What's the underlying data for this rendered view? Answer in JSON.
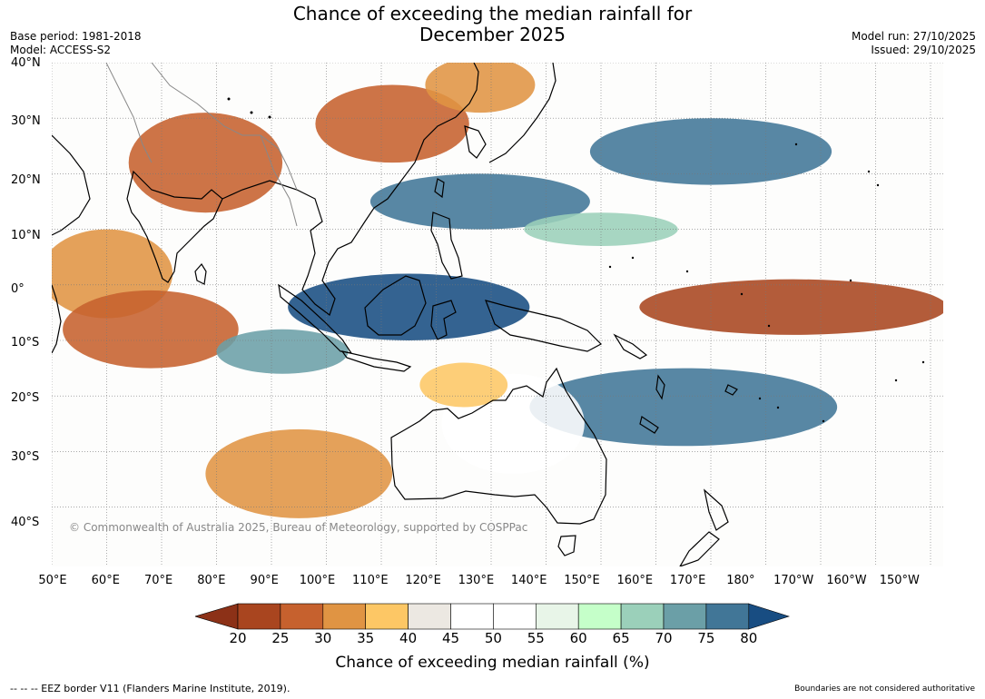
{
  "title": {
    "line1": "Chance of exceeding the median rainfall for",
    "line2": "December 2025"
  },
  "meta": {
    "base_period": "Base period: 1981-2018",
    "model": "Model: ACCESS-S2",
    "model_run": "Model run: 27/10/2025",
    "issued": "Issued: 29/10/2025"
  },
  "map": {
    "copyright": "© Commonwealth of Australia 2025, Bureau of Meteorology, supported by COSPPac",
    "lat_labels": [
      "40°N",
      "30°N",
      "20°N",
      "10°N",
      "0°",
      "10°S",
      "20°S",
      "30°S",
      "40°S"
    ],
    "lon_labels": [
      "50°E",
      "60°E",
      "70°E",
      "80°E",
      "90°E",
      "100°E",
      "110°E",
      "120°E",
      "130°E",
      "140°E",
      "150°E",
      "160°E",
      "170°E",
      "180°",
      "170°W",
      "160°W",
      "150°W"
    ],
    "regions": [
      {
        "name": "india-dry",
        "lon": 78,
        "lat": 22,
        "rlon": 14,
        "rlat": 9,
        "value": 25
      },
      {
        "name": "china-dry",
        "lon": 112,
        "lat": 29,
        "rlon": 14,
        "rlat": 7,
        "value": 25
      },
      {
        "name": "japan-sea-dry",
        "lon": 128,
        "lat": 36,
        "rlon": 10,
        "rlat": 5,
        "value": 30
      },
      {
        "name": "arabian-sea-dry",
        "lon": 60,
        "lat": 2,
        "rlon": 12,
        "rlat": 8,
        "value": 30
      },
      {
        "name": "indian-ocean-dry",
        "lon": 68,
        "lat": -8,
        "rlon": 16,
        "rlat": 7,
        "value": 25
      },
      {
        "name": "south-indian-dry",
        "lon": 95,
        "lat": -34,
        "rlon": 17,
        "rlat": 8,
        "value": 30
      },
      {
        "name": "pacific-equatorial-dry",
        "lon": -175,
        "lat": -4,
        "rlon": 28,
        "rlat": 5,
        "value": 20
      },
      {
        "name": "indonesia-wet",
        "lon": 115,
        "lat": -4,
        "rlon": 22,
        "rlat": 6,
        "value": 80
      },
      {
        "name": "philippines-wet",
        "lon": 128,
        "lat": 15,
        "rlon": 20,
        "rlat": 5,
        "value": 75
      },
      {
        "name": "north-pacific-wet",
        "lon": 170,
        "lat": 24,
        "rlon": 22,
        "rlat": 6,
        "value": 75
      },
      {
        "name": "spcz-wet",
        "lon": 165,
        "lat": -22,
        "rlon": 28,
        "rlat": 7,
        "value": 75
      },
      {
        "name": "bay-bengal-wet",
        "lon": 92,
        "lat": -12,
        "rlon": 12,
        "rlat": 4,
        "value": 70
      },
      {
        "name": "west-pacific-wet",
        "lon": 150,
        "lat": 10,
        "rlon": 14,
        "rlat": 3,
        "value": 65
      },
      {
        "name": "australia-neutral",
        "lon": 134,
        "lat": -25,
        "rlon": 13,
        "rlat": 9,
        "value": 50
      },
      {
        "name": "australia-north-dry",
        "lon": 125,
        "lat": -18,
        "rlon": 8,
        "rlat": 4,
        "value": 35
      }
    ]
  },
  "colorbar": {
    "label": "Chance of exceeding median rainfall (%)",
    "ticks": [
      "20",
      "25",
      "30",
      "35",
      "40",
      "45",
      "50",
      "55",
      "60",
      "65",
      "70",
      "75",
      "80"
    ],
    "colors": [
      "#8c3117",
      "#a9451f",
      "#c6612e",
      "#e09443",
      "#fdc765",
      "#ece8e2",
      "#ffffff",
      "#ffffff",
      "#e8f5e8",
      "#c5ffc9",
      "#9bd0ba",
      "#6b9fa7",
      "#417697",
      "#184d82"
    ]
  },
  "footer": {
    "eez_note": "--  --  -- EEZ border V11 (Flanders Marine Institute, 2019).",
    "boundaries_note": "Boundaries are not considered authoritative"
  }
}
